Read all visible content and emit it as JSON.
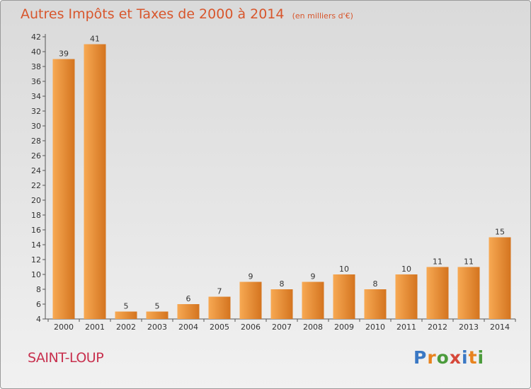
{
  "header": {
    "title": "Autres Impôts et Taxes de 2000 à 2014",
    "subtitle": "(en milliers d'€)"
  },
  "footer": {
    "place": "SAINT-LOUP",
    "logo": "Proxiti"
  },
  "colors": {
    "title": "#d8562c",
    "place": "#c8304e",
    "bar_light": "#f7a953",
    "bar_dark": "#d4741f",
    "logo": [
      "#3a78c4",
      "#e8831e",
      "#4b9b3c",
      "#d6483a",
      "#3a78c4",
      "#e8831e",
      "#4b9b3c"
    ]
  },
  "chart_data": {
    "type": "bar",
    "categories": [
      "2000",
      "2001",
      "2002",
      "2003",
      "2004",
      "2005",
      "2006",
      "2007",
      "2008",
      "2009",
      "2010",
      "2011",
      "2012",
      "2013",
      "2014"
    ],
    "values": [
      39,
      41,
      5,
      5,
      6,
      7,
      9,
      8,
      9,
      10,
      8,
      10,
      11,
      11,
      15
    ],
    "ylim": [
      4,
      42
    ],
    "yticks": [
      4,
      6,
      8,
      10,
      12,
      14,
      16,
      18,
      20,
      22,
      24,
      26,
      28,
      30,
      32,
      34,
      36,
      38,
      40,
      42
    ],
    "grid": false,
    "data_labels": true
  }
}
